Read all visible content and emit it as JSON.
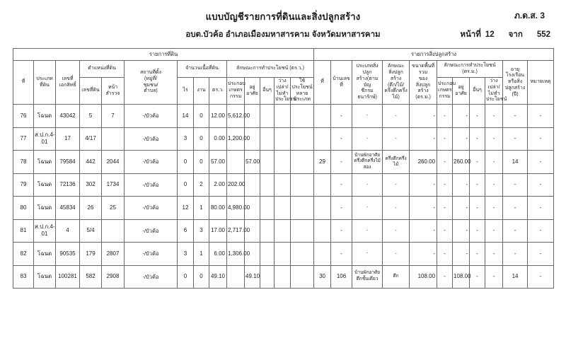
{
  "page": {
    "title": "แบบบัญชีรายการที่ดินและสิ่งปลูกสร้าง",
    "form_code": "ภ.ด.ส. 3",
    "organization": "อบต.บัวค้อ อำเภอเมืองมหาสารคาม จังหวัดมหาสารคาม",
    "page_label": "หน้าที่",
    "page_number": "12",
    "from_label": "จาก",
    "total_pages": "552"
  },
  "table": {
    "sections": {
      "land": "รายการที่ดิน",
      "building": "รายการสิ่งปลูกสร้าง"
    },
    "headers": {
      "no": "ที่",
      "land_type": "ประเภท\nที่ดิน",
      "deed_no": "เลขที่\nเอกสิทธิ์",
      "position_group": "ตำแหน่งที่ดิน",
      "parcel_no": "เลขที่ดิน",
      "survey_page": "หน้า\nสำรวจ",
      "location": "สถานที่ตั้ง\n(หมู่ที่/\nชุมชน/\nตำบล)",
      "area_group": "จำนวนเนื้อที่ดิน",
      "rai": "ไร่",
      "ngan": "งาน",
      "wah": "ตร.ว.",
      "usage_group_land": "ลักษณะการทำประโยชน์ (ตร.ว.)",
      "use_agri": "ประกอบ\nเกษตร\nกรรม",
      "use_resid": "อยู่อาศัย",
      "use_other": "อื่นๆ",
      "use_vacant": "ว่างเปล่า/\nไม่ทำ\nประโยชน์",
      "use_multi": "ใช้ประโยชน์\nหลาย\nประเภท",
      "b_no": "ที่",
      "b_house_no": "บ้านเลขที่",
      "b_type": "ประเภทสิ่งปลูก\nสร้าง(ตามบัญ\nชีกรมธนารักษ์)",
      "b_structure": "ลักษณะ\nสิ่งปลูกสร้าง\n(ตึก/ไม้/\nครึ่งตึกครึ่งไม้)",
      "b_area": "ขนาดพื้นที่รวม\nของ\nสิ่งปลูกสร้าง\n(ตร.ม.)",
      "usage_group_building": "ลักษณะการทำประโยชน์ (ตร.ม.)",
      "b_use_agri": "ประกอบ\nเกษตร\nกรรม",
      "b_use_resid": "อยู่อาศัย",
      "b_use_other": "อื่นๆ",
      "b_use_vacant": "ว่างเปล่า/\nไม่ทำ\nประโยชน์",
      "b_age": "อายุ\nโรงเรือน\nหรือสิ่ง\nปลูกสร้าง\n(ปี)",
      "b_note": "หมายเหตุ"
    },
    "rows": [
      {
        "no": "76",
        "land_type": "โฉนด",
        "deed_no": "43042",
        "parcel_no": "5",
        "survey_page": "7",
        "location": "-/บัวค้อ",
        "rai": "14",
        "ngan": "0",
        "wah": "12.00",
        "use_agri": "5,612.00",
        "use_resid": "",
        "use_other": "",
        "use_vacant": "",
        "use_multi": "",
        "b_no": "",
        "b_house_no": "-",
        "b_type": "-",
        "b_structure": "-",
        "b_area": "-",
        "b_use_agri": "-",
        "b_use_resid": "-",
        "b_use_other": "-",
        "b_use_vacant": "-",
        "b_age": "-",
        "b_note": "-"
      },
      {
        "no": "77",
        "land_type": "ส.ป.ก.4-01",
        "deed_no": "17",
        "parcel_no": "4/17",
        "survey_page": "",
        "location": "-/บัวค้อ",
        "rai": "3",
        "ngan": "0",
        "wah": "0.00",
        "use_agri": "1,200.00",
        "use_resid": "",
        "use_other": "",
        "use_vacant": "",
        "use_multi": "",
        "b_no": "",
        "b_house_no": "-",
        "b_type": "-",
        "b_structure": "-",
        "b_area": "-",
        "b_use_agri": "-",
        "b_use_resid": "-",
        "b_use_other": "-",
        "b_use_vacant": "-",
        "b_age": "-",
        "b_note": "-"
      },
      {
        "no": "78",
        "land_type": "โฉนด",
        "deed_no": "79584",
        "parcel_no": "442",
        "survey_page": "2044",
        "location": "-/บัวค้อ",
        "rai": "0",
        "ngan": "0",
        "wah": "57.00",
        "use_agri": "",
        "use_resid": "57.00",
        "use_other": "",
        "use_vacant": "",
        "use_multi": "",
        "b_no": "29",
        "b_house_no": "-",
        "b_type": "บ้านพักอาศัยครึ่งตึกครึ่งไม้สอง",
        "b_structure": "ครึ่งตึกครึ่งไม้",
        "b_area": "260.00",
        "b_use_agri": "-",
        "b_use_resid": "260.00",
        "b_use_other": "-",
        "b_use_vacant": "-",
        "b_age": "14",
        "b_note": "-"
      },
      {
        "no": "79",
        "land_type": "โฉนด",
        "deed_no": "72136",
        "parcel_no": "302",
        "survey_page": "1734",
        "location": "-/บัวค้อ",
        "rai": "0",
        "ngan": "2",
        "wah": "2.00",
        "use_agri": "202.00",
        "use_resid": "",
        "use_other": "",
        "use_vacant": "",
        "use_multi": "",
        "b_no": "",
        "b_house_no": "-",
        "b_type": "-",
        "b_structure": "-",
        "b_area": "-",
        "b_use_agri": "-",
        "b_use_resid": "-",
        "b_use_other": "-",
        "b_use_vacant": "-",
        "b_age": "-",
        "b_note": "-"
      },
      {
        "no": "80",
        "land_type": "โฉนด",
        "deed_no": "45834",
        "parcel_no": "26",
        "survey_page": "25",
        "location": "-/บัวค้อ",
        "rai": "12",
        "ngan": "1",
        "wah": "80.00",
        "use_agri": "4,980.00",
        "use_resid": "",
        "use_other": "",
        "use_vacant": "",
        "use_multi": "",
        "b_no": "",
        "b_house_no": "-",
        "b_type": "-",
        "b_structure": "-",
        "b_area": "-",
        "b_use_agri": "-",
        "b_use_resid": "-",
        "b_use_other": "-",
        "b_use_vacant": "-",
        "b_age": "-",
        "b_note": "-"
      },
      {
        "no": "81",
        "land_type": "ส.ป.ก.4-01",
        "deed_no": "4",
        "parcel_no": "5/4",
        "survey_page": "",
        "location": "-/บัวค้อ",
        "rai": "6",
        "ngan": "3",
        "wah": "17.00",
        "use_agri": "2,717.00",
        "use_resid": "",
        "use_other": "",
        "use_vacant": "",
        "use_multi": "",
        "b_no": "",
        "b_house_no": "-",
        "b_type": "-",
        "b_structure": "-",
        "b_area": "-",
        "b_use_agri": "-",
        "b_use_resid": "-",
        "b_use_other": "-",
        "b_use_vacant": "-",
        "b_age": "-",
        "b_note": "-"
      },
      {
        "no": "82",
        "land_type": "โฉนด",
        "deed_no": "90535",
        "parcel_no": "179",
        "survey_page": "2807",
        "location": "-/บัวค้อ",
        "rai": "3",
        "ngan": "1",
        "wah": "6.00",
        "use_agri": "1,306.00",
        "use_resid": "",
        "use_other": "",
        "use_vacant": "",
        "use_multi": "",
        "b_no": "",
        "b_house_no": "-",
        "b_type": "-",
        "b_structure": "-",
        "b_area": "-",
        "b_use_agri": "-",
        "b_use_resid": "-",
        "b_use_other": "-",
        "b_use_vacant": "-",
        "b_age": "-",
        "b_note": "-"
      },
      {
        "no": "83",
        "land_type": "โฉนด",
        "deed_no": "100281",
        "parcel_no": "582",
        "survey_page": "2908",
        "location": "-/บัวค้อ",
        "rai": "0",
        "ngan": "0",
        "wah": "49.10",
        "use_agri": "",
        "use_resid": "49.10",
        "use_other": "",
        "use_vacant": "",
        "use_multi": "",
        "b_no": "30",
        "b_house_no": "106",
        "b_type": "บ้านพักอาศัยตึกชั้นเดียว",
        "b_structure": "ตึก",
        "b_area": "108.00",
        "b_use_agri": "-",
        "b_use_resid": "108.00",
        "b_use_other": "-",
        "b_use_vacant": "-",
        "b_age": "14",
        "b_note": "-"
      }
    ]
  }
}
